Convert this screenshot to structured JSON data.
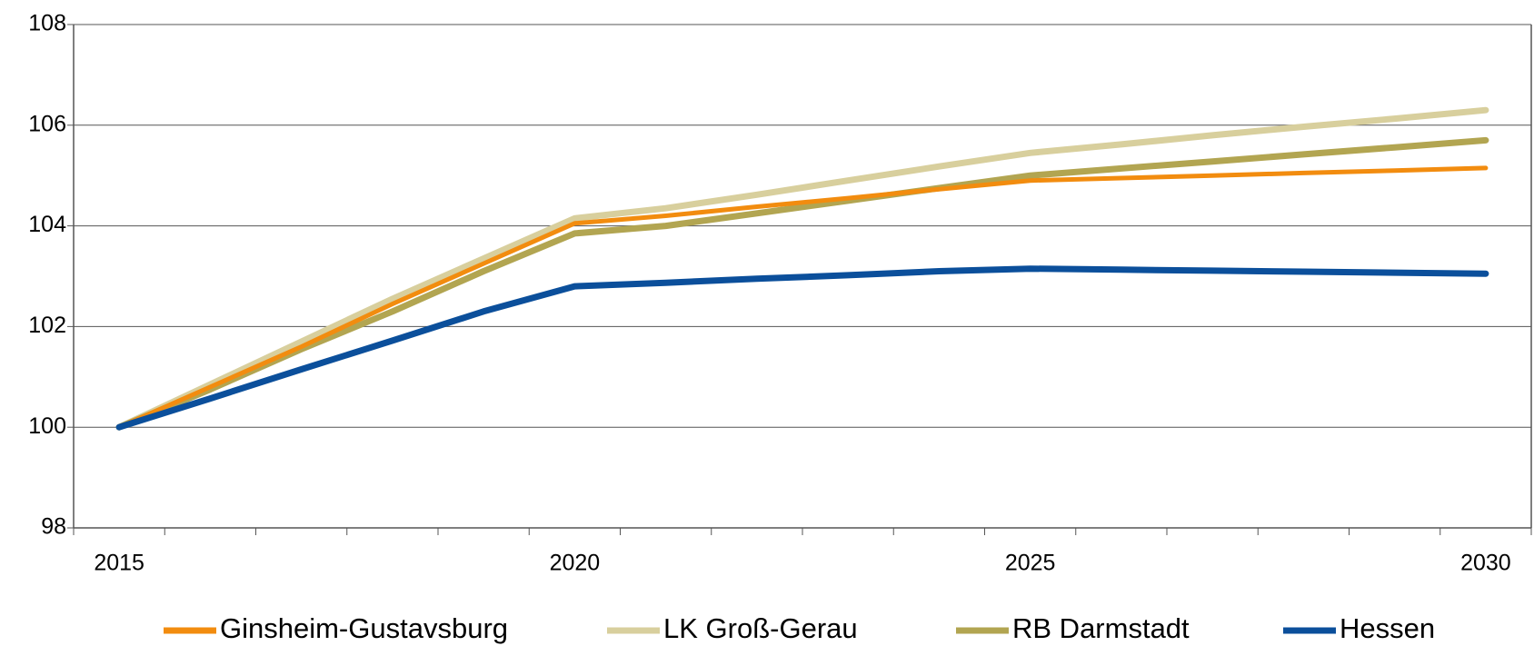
{
  "chart_data": {
    "type": "line",
    "categories": [
      "2015",
      null,
      null,
      null,
      null,
      "2020",
      null,
      null,
      null,
      null,
      "2025",
      null,
      null,
      null,
      null,
      "2030"
    ],
    "series": [
      {
        "name": "Ginsheim-Gustavsburg",
        "color": "#f28c0f",
        "values": [
          100,
          100.8,
          101.6,
          102.45,
          103.25,
          104.05,
          104.2,
          104.38,
          104.55,
          104.73,
          104.9,
          104.95,
          105.0,
          105.05,
          105.1,
          105.15
        ]
      },
      {
        "name": "LK Groß-Gerau",
        "color": "#d8cf9d",
        "values": [
          100,
          100.85,
          101.7,
          102.55,
          103.35,
          104.15,
          104.35,
          104.62,
          104.9,
          105.18,
          105.45,
          105.62,
          105.8,
          105.97,
          106.13,
          106.3
        ]
      },
      {
        "name": "RB Darmstadt",
        "color": "#b2a551",
        "values": [
          100,
          100.75,
          101.55,
          102.3,
          103.1,
          103.85,
          104.0,
          104.25,
          104.5,
          104.75,
          105.0,
          105.14,
          105.28,
          105.42,
          105.56,
          105.7
        ]
      },
      {
        "name": "Hessen",
        "color": "#0b4f9b",
        "values": [
          100,
          100.57,
          101.15,
          101.72,
          102.3,
          102.8,
          102.87,
          102.95,
          103.02,
          103.1,
          103.15,
          103.13,
          103.11,
          103.09,
          103.07,
          103.05
        ]
      }
    ],
    "ylim": [
      98,
      108
    ],
    "yticks": [
      98,
      100,
      102,
      104,
      106,
      108
    ],
    "grid": true,
    "legend": "bottom"
  }
}
